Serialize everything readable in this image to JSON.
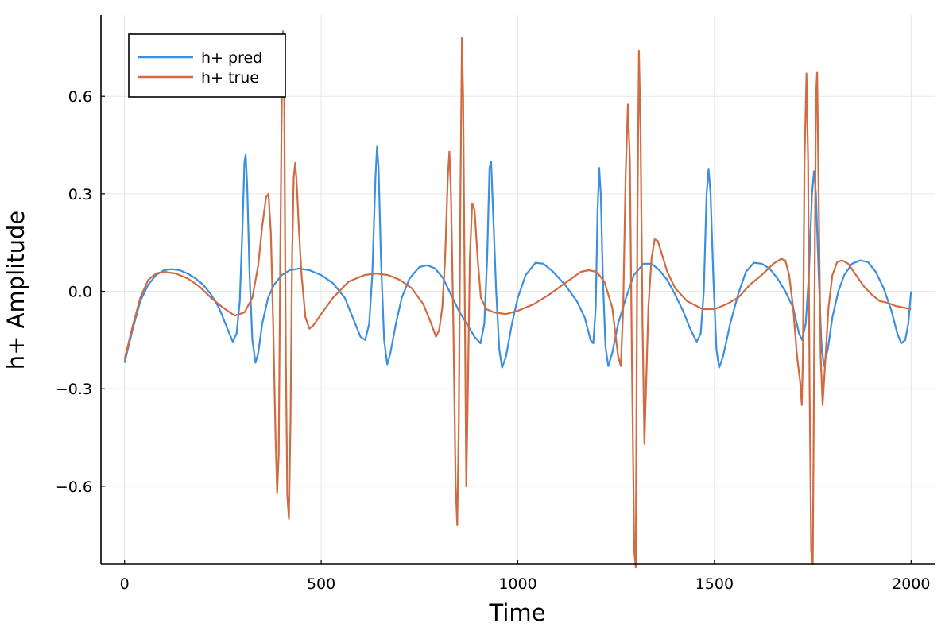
{
  "chart_data": {
    "type": "line",
    "title": "",
    "xlabel": "Time",
    "ylabel": "h+ Amplitude",
    "xlim": [
      -60,
      2060
    ],
    "ylim": [
      -0.84,
      0.85
    ],
    "xticks": [
      0,
      500,
      1000,
      1500,
      2000
    ],
    "xtick_labels": [
      "0",
      "500",
      "1000",
      "1500",
      "2000"
    ],
    "yticks": [
      -0.6,
      -0.3,
      0.0,
      0.3,
      0.6
    ],
    "ytick_labels": [
      "−0.6",
      "−0.3",
      "0.0",
      "0.3",
      "0.6"
    ],
    "grid": true,
    "legend_position": "top-left",
    "series": [
      {
        "name": "h+ pred",
        "color": "#3a8fe0",
        "points": [
          [
            0,
            -0.22
          ],
          [
            20,
            -0.12
          ],
          [
            40,
            -0.03
          ],
          [
            60,
            0.02
          ],
          [
            80,
            0.05
          ],
          [
            100,
            0.065
          ],
          [
            120,
            0.068
          ],
          [
            140,
            0.065
          ],
          [
            160,
            0.055
          ],
          [
            180,
            0.04
          ],
          [
            200,
            0.02
          ],
          [
            220,
            -0.01
          ],
          [
            240,
            -0.05
          ],
          [
            260,
            -0.11
          ],
          [
            275,
            -0.155
          ],
          [
            285,
            -0.13
          ],
          [
            293,
            -0.03
          ],
          [
            300,
            0.2
          ],
          [
            305,
            0.4
          ],
          [
            308,
            0.42
          ],
          [
            312,
            0.32
          ],
          [
            318,
            0.05
          ],
          [
            325,
            -0.15
          ],
          [
            333,
            -0.22
          ],
          [
            340,
            -0.19
          ],
          [
            350,
            -0.1
          ],
          [
            365,
            -0.02
          ],
          [
            380,
            0.02
          ],
          [
            400,
            0.05
          ],
          [
            420,
            0.065
          ],
          [
            445,
            0.07
          ],
          [
            470,
            0.065
          ],
          [
            500,
            0.05
          ],
          [
            530,
            0.025
          ],
          [
            560,
            -0.02
          ],
          [
            580,
            -0.08
          ],
          [
            600,
            -0.14
          ],
          [
            612,
            -0.15
          ],
          [
            622,
            -0.1
          ],
          [
            630,
            0.05
          ],
          [
            638,
            0.35
          ],
          [
            642,
            0.445
          ],
          [
            646,
            0.38
          ],
          [
            652,
            0.1
          ],
          [
            660,
            -0.15
          ],
          [
            668,
            -0.225
          ],
          [
            676,
            -0.19
          ],
          [
            690,
            -0.1
          ],
          [
            705,
            -0.02
          ],
          [
            725,
            0.04
          ],
          [
            750,
            0.075
          ],
          [
            770,
            0.08
          ],
          [
            790,
            0.07
          ],
          [
            810,
            0.04
          ],
          [
            830,
            -0.01
          ],
          [
            850,
            -0.06
          ],
          [
            870,
            -0.1
          ],
          [
            890,
            -0.14
          ],
          [
            905,
            -0.16
          ],
          [
            915,
            -0.1
          ],
          [
            922,
            0.1
          ],
          [
            928,
            0.38
          ],
          [
            932,
            0.4
          ],
          [
            937,
            0.25
          ],
          [
            945,
            0.0
          ],
          [
            953,
            -0.18
          ],
          [
            960,
            -0.235
          ],
          [
            970,
            -0.2
          ],
          [
            985,
            -0.1
          ],
          [
            1000,
            -0.02
          ],
          [
            1020,
            0.05
          ],
          [
            1045,
            0.088
          ],
          [
            1065,
            0.085
          ],
          [
            1090,
            0.06
          ],
          [
            1120,
            0.02
          ],
          [
            1150,
            -0.03
          ],
          [
            1170,
            -0.08
          ],
          [
            1185,
            -0.15
          ],
          [
            1192,
            -0.16
          ],
          [
            1198,
            -0.05
          ],
          [
            1203,
            0.25
          ],
          [
            1207,
            0.38
          ],
          [
            1211,
            0.3
          ],
          [
            1216,
            0.05
          ],
          [
            1223,
            -0.17
          ],
          [
            1230,
            -0.23
          ],
          [
            1240,
            -0.19
          ],
          [
            1255,
            -0.1
          ],
          [
            1275,
            -0.02
          ],
          [
            1295,
            0.05
          ],
          [
            1320,
            0.085
          ],
          [
            1340,
            0.085
          ],
          [
            1360,
            0.065
          ],
          [
            1380,
            0.035
          ],
          [
            1400,
            -0.01
          ],
          [
            1420,
            -0.06
          ],
          [
            1440,
            -0.12
          ],
          [
            1455,
            -0.155
          ],
          [
            1465,
            -0.13
          ],
          [
            1473,
            0.0
          ],
          [
            1480,
            0.3
          ],
          [
            1485,
            0.375
          ],
          [
            1490,
            0.3
          ],
          [
            1497,
            0.05
          ],
          [
            1505,
            -0.18
          ],
          [
            1512,
            -0.235
          ],
          [
            1522,
            -0.2
          ],
          [
            1540,
            -0.1
          ],
          [
            1560,
            -0.01
          ],
          [
            1580,
            0.06
          ],
          [
            1600,
            0.088
          ],
          [
            1620,
            0.085
          ],
          [
            1640,
            0.07
          ],
          [
            1660,
            0.04
          ],
          [
            1680,
            0.0
          ],
          [
            1700,
            -0.05
          ],
          [
            1715,
            -0.13
          ],
          [
            1723,
            -0.15
          ],
          [
            1732,
            -0.1
          ],
          [
            1740,
            0.05
          ],
          [
            1748,
            0.3
          ],
          [
            1753,
            0.37
          ],
          [
            1758,
            0.3
          ],
          [
            1765,
            0.05
          ],
          [
            1772,
            -0.16
          ],
          [
            1778,
            -0.23
          ],
          [
            1788,
            -0.18
          ],
          [
            1800,
            -0.08
          ],
          [
            1815,
            0.0
          ],
          [
            1830,
            0.05
          ],
          [
            1850,
            0.085
          ],
          [
            1870,
            0.095
          ],
          [
            1890,
            0.09
          ],
          [
            1910,
            0.06
          ],
          [
            1930,
            0.01
          ],
          [
            1950,
            -0.06
          ],
          [
            1965,
            -0.13
          ],
          [
            1975,
            -0.16
          ],
          [
            1985,
            -0.15
          ],
          [
            1993,
            -0.1
          ],
          [
            2000,
            0.0
          ]
        ]
      },
      {
        "name": "h+ true",
        "color": "#d16b42",
        "points": [
          [
            0,
            -0.21
          ],
          [
            20,
            -0.11
          ],
          [
            40,
            -0.02
          ],
          [
            60,
            0.035
          ],
          [
            80,
            0.055
          ],
          [
            100,
            0.06
          ],
          [
            130,
            0.055
          ],
          [
            160,
            0.04
          ],
          [
            190,
            0.015
          ],
          [
            220,
            -0.02
          ],
          [
            250,
            -0.05
          ],
          [
            280,
            -0.075
          ],
          [
            305,
            -0.065
          ],
          [
            325,
            -0.02
          ],
          [
            340,
            0.08
          ],
          [
            350,
            0.2
          ],
          [
            360,
            0.29
          ],
          [
            366,
            0.3
          ],
          [
            372,
            0.18
          ],
          [
            378,
            -0.1
          ],
          [
            384,
            -0.45
          ],
          [
            388,
            -0.62
          ],
          [
            392,
            -0.5
          ],
          [
            396,
            0.1
          ],
          [
            400,
            0.6
          ],
          [
            403,
            0.8
          ],
          [
            406,
            0.6
          ],
          [
            410,
            -0.2
          ],
          [
            414,
            -0.63
          ],
          [
            418,
            -0.7
          ],
          [
            422,
            -0.4
          ],
          [
            426,
            0.1
          ],
          [
            430,
            0.35
          ],
          [
            434,
            0.395
          ],
          [
            438,
            0.33
          ],
          [
            443,
            0.2
          ],
          [
            450,
            0.05
          ],
          [
            460,
            -0.08
          ],
          [
            470,
            -0.115
          ],
          [
            480,
            -0.105
          ],
          [
            500,
            -0.07
          ],
          [
            530,
            -0.02
          ],
          [
            570,
            0.03
          ],
          [
            610,
            0.05
          ],
          [
            640,
            0.055
          ],
          [
            670,
            0.05
          ],
          [
            700,
            0.035
          ],
          [
            730,
            0.01
          ],
          [
            760,
            -0.04
          ],
          [
            780,
            -0.1
          ],
          [
            792,
            -0.14
          ],
          [
            800,
            -0.12
          ],
          [
            808,
            -0.05
          ],
          [
            815,
            0.1
          ],
          [
            822,
            0.35
          ],
          [
            826,
            0.43
          ],
          [
            830,
            0.3
          ],
          [
            836,
            -0.1
          ],
          [
            842,
            -0.6
          ],
          [
            846,
            -0.72
          ],
          [
            850,
            -0.4
          ],
          [
            854,
            0.3
          ],
          [
            858,
            0.78
          ],
          [
            861,
            0.6
          ],
          [
            865,
            0.0
          ],
          [
            869,
            -0.6
          ],
          [
            873,
            -0.3
          ],
          [
            878,
            0.1
          ],
          [
            884,
            0.27
          ],
          [
            890,
            0.25
          ],
          [
            898,
            0.1
          ],
          [
            906,
            -0.02
          ],
          [
            920,
            -0.055
          ],
          [
            940,
            -0.065
          ],
          [
            970,
            -0.07
          ],
          [
            1000,
            -0.06
          ],
          [
            1040,
            -0.04
          ],
          [
            1080,
            -0.01
          ],
          [
            1120,
            0.025
          ],
          [
            1160,
            0.06
          ],
          [
            1180,
            0.065
          ],
          [
            1200,
            0.06
          ],
          [
            1220,
            0.03
          ],
          [
            1240,
            -0.05
          ],
          [
            1255,
            -0.2
          ],
          [
            1262,
            -0.23
          ],
          [
            1268,
            -0.05
          ],
          [
            1274,
            0.35
          ],
          [
            1280,
            0.575
          ],
          [
            1285,
            0.4
          ],
          [
            1290,
            -0.2
          ],
          [
            1296,
            -0.8
          ],
          [
            1300,
            -0.85
          ],
          [
            1304,
            0.2
          ],
          [
            1308,
            0.74
          ],
          [
            1312,
            0.5
          ],
          [
            1317,
            -0.1
          ],
          [
            1322,
            -0.47
          ],
          [
            1326,
            -0.3
          ],
          [
            1332,
            -0.05
          ],
          [
            1340,
            0.1
          ],
          [
            1348,
            0.16
          ],
          [
            1356,
            0.155
          ],
          [
            1365,
            0.12
          ],
          [
            1380,
            0.06
          ],
          [
            1400,
            0.01
          ],
          [
            1430,
            -0.03
          ],
          [
            1470,
            -0.055
          ],
          [
            1500,
            -0.055
          ],
          [
            1530,
            -0.04
          ],
          [
            1560,
            -0.02
          ],
          [
            1590,
            0.02
          ],
          [
            1620,
            0.05
          ],
          [
            1650,
            0.085
          ],
          [
            1670,
            0.1
          ],
          [
            1680,
            0.095
          ],
          [
            1690,
            0.05
          ],
          [
            1700,
            -0.05
          ],
          [
            1710,
            -0.2
          ],
          [
            1718,
            -0.28
          ],
          [
            1722,
            -0.35
          ],
          [
            1725,
            -0.2
          ],
          [
            1729,
            0.4
          ],
          [
            1734,
            0.67
          ],
          [
            1738,
            0.4
          ],
          [
            1742,
            -0.3
          ],
          [
            1746,
            -0.8
          ],
          [
            1750,
            -0.84
          ],
          [
            1754,
            -0.1
          ],
          [
            1758,
            0.6
          ],
          [
            1761,
            0.675
          ],
          [
            1765,
            0.3
          ],
          [
            1770,
            -0.2
          ],
          [
            1775,
            -0.35
          ],
          [
            1780,
            -0.25
          ],
          [
            1790,
            -0.05
          ],
          [
            1800,
            0.05
          ],
          [
            1812,
            0.09
          ],
          [
            1825,
            0.095
          ],
          [
            1840,
            0.085
          ],
          [
            1860,
            0.05
          ],
          [
            1880,
            0.015
          ],
          [
            1900,
            -0.01
          ],
          [
            1920,
            -0.03
          ],
          [
            1940,
            -0.035
          ],
          [
            1960,
            -0.045
          ],
          [
            1980,
            -0.05
          ],
          [
            2000,
            -0.055
          ]
        ]
      }
    ]
  }
}
